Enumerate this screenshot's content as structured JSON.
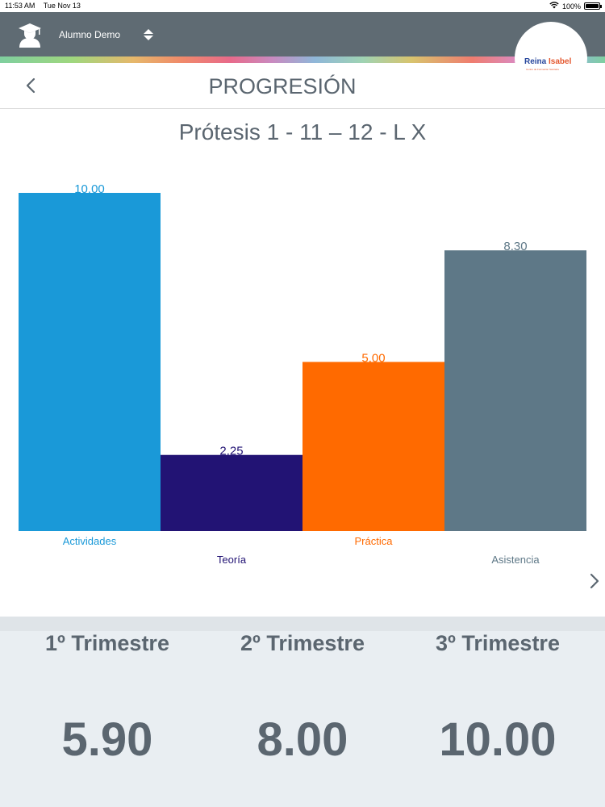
{
  "status_bar": {
    "time": "11:53 AM",
    "date": "Tue Nov 13",
    "battery": "100%"
  },
  "header": {
    "user_name": "Alumno Demo",
    "logo": {
      "text_1": "Reina",
      "text_2": "Isabel",
      "tagline": "Centro de Formación Sanitaria"
    }
  },
  "nav": {
    "title": "PROGRESIÓN"
  },
  "subject": {
    "title": "Prótesis 1 - 11 – 12 - L X"
  },
  "chart_data": {
    "type": "bar",
    "categories": [
      "Actividades",
      "Teoría",
      "Práctica",
      "Asistencia"
    ],
    "values": [
      10.0,
      2.25,
      5.0,
      8.3
    ],
    "value_labels": [
      "10.00",
      "2.25",
      "5.00",
      "8.30"
    ],
    "colors": [
      "#1a99d8",
      "#221374",
      "#ff6a00",
      "#5e7887"
    ],
    "ylim": [
      0,
      10
    ],
    "grid": false,
    "legend": "none"
  },
  "terms": [
    {
      "label": "1º Trimestre",
      "value": "5.90"
    },
    {
      "label": "2º Trimestre",
      "value": "8.00"
    },
    {
      "label": "3º Trimestre",
      "value": "10.00"
    }
  ],
  "colors": {
    "header_bg": "#5f6b73",
    "text": "#5b6670",
    "panel_bg": "#e9eef2"
  }
}
